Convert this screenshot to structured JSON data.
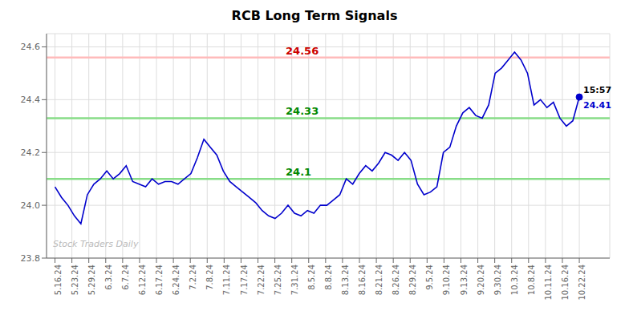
{
  "chart_data": {
    "type": "line",
    "title": "RCB Long Term Signals",
    "x": [
      0,
      0.3827,
      0.7654,
      1.1481,
      1.5309,
      1.9136,
      2.2963,
      2.679,
      3.0617,
      3.4444,
      3.8272,
      4.2099,
      4.5926,
      4.9753,
      5.358,
      5.7407,
      6.1235,
      6.5062,
      6.8889,
      7.2716,
      7.6543,
      8.037,
      8.4198,
      8.8025,
      9.1852,
      9.5679,
      9.9506,
      10.3333,
      10.716,
      11.0988,
      11.4815,
      11.8642,
      12.2469,
      12.6296,
      13.0123,
      13.3951,
      13.7778,
      14.1605,
      14.5432,
      14.9259,
      15.3086,
      15.6914,
      16.0741,
      16.4568,
      16.8395,
      17.2222,
      17.6049,
      17.9877,
      18.3704,
      18.7531,
      19.1358,
      19.5185,
      19.9012,
      20.284,
      20.6667,
      21.0494,
      21.4321,
      21.8148,
      22.1975,
      22.5802,
      22.963,
      23.3457,
      23.7284,
      24.1111,
      24.4938,
      24.8765,
      25.2593,
      25.642,
      26.0247,
      26.4074,
      26.7901,
      27.1728,
      27.5556,
      27.9383,
      28.321,
      28.7037,
      29.0864,
      29.4691,
      29.8519,
      30.2346,
      30.6173,
      31
    ],
    "values": [
      24.07,
      24.03,
      24.0,
      23.96,
      23.93,
      24.04,
      24.08,
      24.1,
      24.13,
      24.1,
      24.12,
      24.15,
      24.09,
      24.08,
      24.07,
      24.1,
      24.08,
      24.09,
      24.09,
      24.08,
      24.1,
      24.12,
      24.18,
      24.25,
      24.22,
      24.19,
      24.13,
      24.09,
      24.07,
      24.05,
      24.03,
      24.01,
      23.98,
      23.96,
      23.95,
      23.97,
      24.0,
      23.97,
      23.96,
      23.98,
      23.97,
      24.0,
      24.0,
      24.02,
      24.04,
      24.1,
      24.08,
      24.12,
      24.15,
      24.13,
      24.16,
      24.2,
      24.19,
      24.17,
      24.2,
      24.17,
      24.08,
      24.04,
      24.05,
      24.07,
      24.2,
      24.22,
      24.3,
      24.35,
      24.37,
      24.34,
      24.33,
      24.38,
      24.5,
      24.52,
      24.55,
      24.58,
      24.55,
      24.5,
      24.38,
      24.4,
      24.37,
      24.39,
      24.33,
      24.3,
      24.32,
      24.41
    ],
    "color": "#0000cc",
    "xlim": [
      -0.5,
      32.8
    ],
    "xticks": [
      {
        "value": 0,
        "label": "5.16.24"
      },
      {
        "value": 1,
        "label": "5.23.24"
      },
      {
        "value": 2,
        "label": "5.29.24"
      },
      {
        "value": 3,
        "label": "6.3.24"
      },
      {
        "value": 4,
        "label": "6.7.24"
      },
      {
        "value": 5,
        "label": "6.12.24"
      },
      {
        "value": 6,
        "label": "6.17.24"
      },
      {
        "value": 7,
        "label": "6.24.24"
      },
      {
        "value": 8,
        "label": "7.2.24"
      },
      {
        "value": 9,
        "label": "7.8.24"
      },
      {
        "value": 10,
        "label": "7.11.24"
      },
      {
        "value": 11,
        "label": "7.17.24"
      },
      {
        "value": 12,
        "label": "7.22.24"
      },
      {
        "value": 13,
        "label": "7.25.24"
      },
      {
        "value": 14,
        "label": "7.31.24"
      },
      {
        "value": 15,
        "label": "8.5.24"
      },
      {
        "value": 16,
        "label": "8.8.24"
      },
      {
        "value": 17,
        "label": "8.13.24"
      },
      {
        "value": 18,
        "label": "8.16.24"
      },
      {
        "value": 19,
        "label": "8.21.24"
      },
      {
        "value": 20,
        "label": "8.26.24"
      },
      {
        "value": 21,
        "label": "8.29.24"
      },
      {
        "value": 22,
        "label": "9.5.24"
      },
      {
        "value": 23,
        "label": "9.10.24"
      },
      {
        "value": 24,
        "label": "9.13.24"
      },
      {
        "value": 25,
        "label": "9.20.24"
      },
      {
        "value": 26,
        "label": "9.30.24"
      },
      {
        "value": 27,
        "label": "10.3.24"
      },
      {
        "value": 28,
        "label": "10.8.24"
      },
      {
        "value": 29,
        "label": "10.11.24"
      },
      {
        "value": 30,
        "label": "10.16.24"
      },
      {
        "value": 31,
        "label": "10.22.24"
      }
    ],
    "ylim": [
      23.8,
      24.65
    ],
    "yticks": [
      23.8,
      {
        "value": 24.0,
        "label": "24.0"
      },
      24.2,
      24.4,
      24.6
    ],
    "grid": true,
    "annotations": [
      {
        "text": "24.56",
        "y": 24.56,
        "color": "#cc0000",
        "line_color": "#ffbbbb"
      },
      {
        "text": "24.33",
        "y": 24.33,
        "color": "#008800",
        "line_color": "#88dd88"
      },
      {
        "text": "24.1",
        "y": 24.1,
        "color": "#008800",
        "line_color": "#88dd88"
      },
      {
        "text": "15:57",
        "x": 31,
        "y": 24.41,
        "color": "#000000"
      },
      {
        "text": "24.41",
        "x": 31,
        "y": 24.41,
        "color": "#0000cc"
      },
      {
        "text": "Stock Traders Daily",
        "color": "#bbbbbb"
      }
    ]
  }
}
